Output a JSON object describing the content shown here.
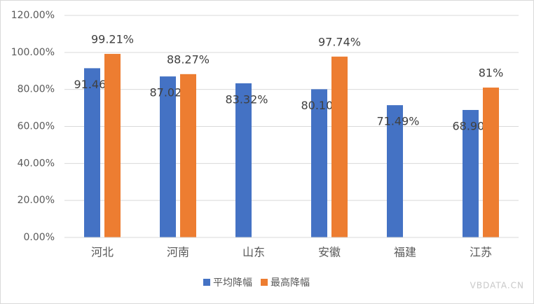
{
  "chart_data": {
    "type": "bar",
    "categories": [
      "河北",
      "河南",
      "山东",
      "安徽",
      "福建",
      "江苏"
    ],
    "series": [
      {
        "name": "平均降幅",
        "color": "#4472c4",
        "values": [
          91.46,
          87.02,
          83.32,
          80.1,
          71.49,
          68.9
        ],
        "value_labels": [
          "91.46%",
          "87.02%",
          "83.32%",
          "80.10%",
          "71.49%",
          "68.90%"
        ]
      },
      {
        "name": "最高降幅",
        "color": "#ed7d31",
        "values": [
          99.21,
          88.27,
          null,
          97.74,
          null,
          81
        ],
        "value_labels": [
          "99.21%",
          "88.27%",
          null,
          "97.74%",
          null,
          "81%"
        ]
      }
    ],
    "ylim": [
      0,
      120
    ],
    "yticks": [
      {
        "value": 0,
        "label": "0.00%"
      },
      {
        "value": 20,
        "label": "20.00%"
      },
      {
        "value": 40,
        "label": "40.00%"
      },
      {
        "value": 60,
        "label": "60.00%"
      },
      {
        "value": 80,
        "label": "80.00%"
      },
      {
        "value": 100,
        "label": "100.00%"
      },
      {
        "value": 120,
        "label": "120.00%"
      }
    ],
    "grid": true,
    "legend": "bottom",
    "watermark": "VBDATA.CN"
  }
}
